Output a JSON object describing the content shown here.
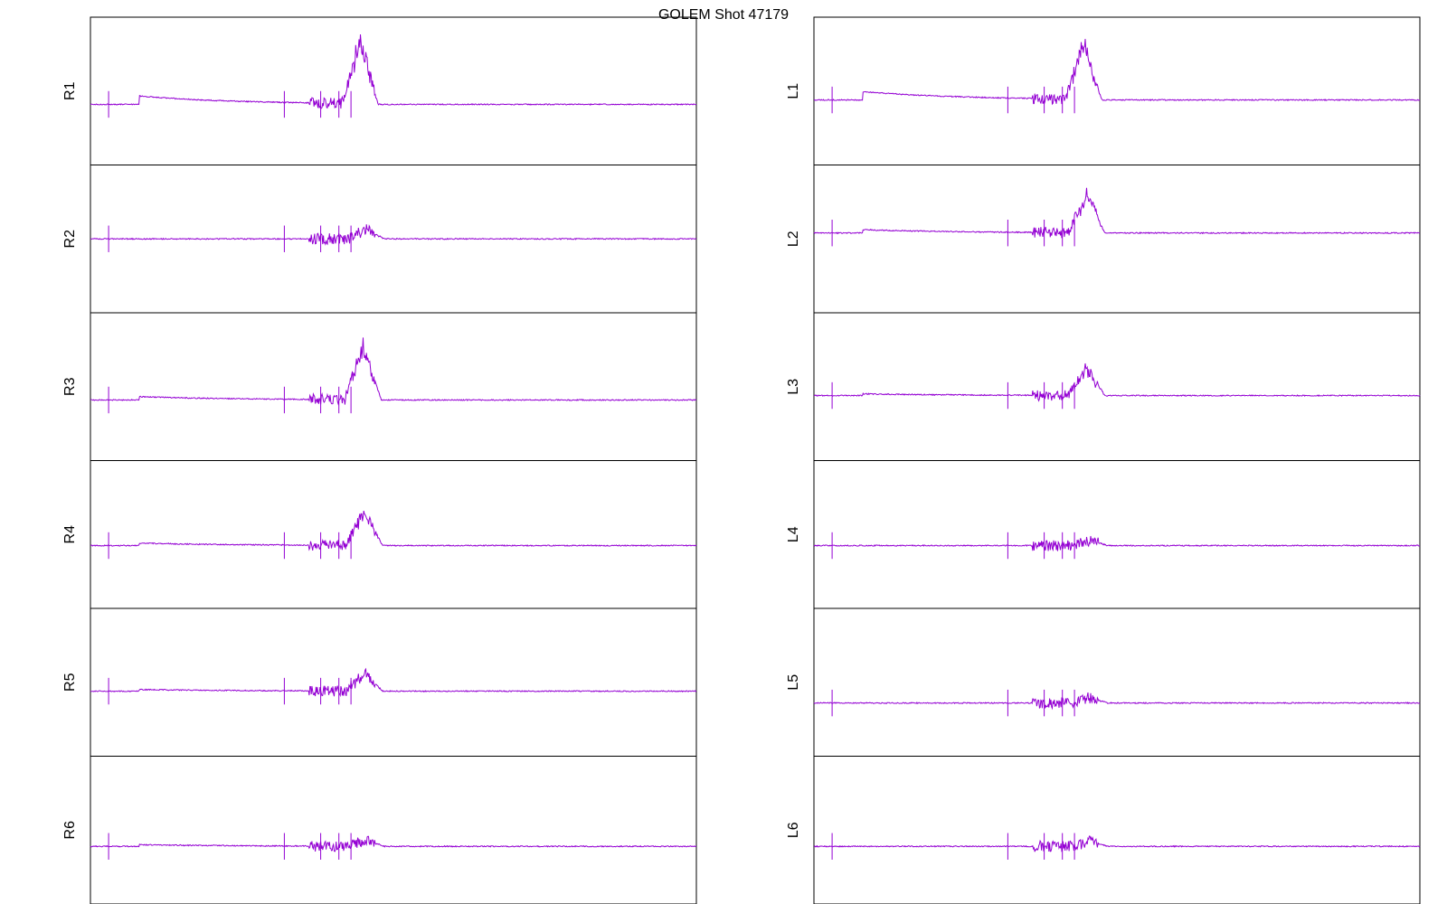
{
  "title": "GOLEM Shot 47179",
  "colors": {
    "trace": "#9400d3",
    "frame": "#000000",
    "background": "#ffffff"
  },
  "chart_data": {
    "type": "line",
    "title": "GOLEM Shot 47179",
    "layout": "6 rows x 2 columns, stacked panels without axes ticks",
    "x_ticks_visible": false,
    "y_ticks_visible": false,
    "grid": false,
    "legend": "none",
    "panels": [
      {
        "name": "R1",
        "column": "left",
        "row": 1,
        "ylabel": "R1",
        "baseline": -0.18,
        "drift": 0.1,
        "spike_peak": 1.0,
        "spike_center": 0.445,
        "noise": 0.1,
        "spikes": [
          0.03,
          0.32,
          0.38,
          0.41,
          0.43
        ]
      },
      {
        "name": "R2",
        "column": "left",
        "row": 2,
        "ylabel": "R2",
        "baseline": 0.0,
        "drift": 0.0,
        "spike_peak": 0.15,
        "spike_center": 0.455,
        "noise": 0.1,
        "spikes": [
          0.03,
          0.32,
          0.38,
          0.41,
          0.43
        ]
      },
      {
        "name": "R3",
        "column": "left",
        "row": 3,
        "ylabel": "R3",
        "baseline": -0.18,
        "drift": 0.04,
        "spike_peak": 0.85,
        "spike_center": 0.45,
        "noise": 0.1,
        "spikes": [
          0.03,
          0.32,
          0.38,
          0.41,
          0.43
        ]
      },
      {
        "name": "R4",
        "column": "left",
        "row": 4,
        "ylabel": "R4",
        "baseline": -0.15,
        "drift": 0.03,
        "spike_peak": 0.55,
        "spike_center": 0.452,
        "noise": 0.1,
        "spikes": [
          0.03,
          0.32,
          0.38,
          0.41,
          0.43
        ]
      },
      {
        "name": "R5",
        "column": "left",
        "row": 5,
        "ylabel": "R5",
        "baseline": -0.12,
        "drift": 0.02,
        "spike_peak": 0.3,
        "spike_center": 0.452,
        "noise": 0.1,
        "spikes": [
          0.03,
          0.32,
          0.38,
          0.41,
          0.43
        ]
      },
      {
        "name": "R6",
        "column": "left",
        "row": 6,
        "ylabel": "R6",
        "baseline": -0.22,
        "drift": 0.02,
        "spike_peak": 0.1,
        "spike_center": 0.455,
        "noise": 0.1,
        "spikes": [
          0.03,
          0.32,
          0.38,
          0.41,
          0.43
        ]
      },
      {
        "name": "L1",
        "column": "right",
        "row": 1,
        "ylabel": "L1",
        "baseline": -0.12,
        "drift": 0.1,
        "spike_peak": 0.9,
        "spike_center": 0.445,
        "noise": 0.1,
        "spikes": [
          0.03,
          0.32,
          0.38,
          0.41,
          0.43
        ]
      },
      {
        "name": "L2",
        "column": "right",
        "row": 2,
        "ylabel": "L2",
        "baseline": 0.08,
        "drift": 0.04,
        "spike_peak": 0.6,
        "spike_center": 0.45,
        "noise": 0.1,
        "spikes": [
          0.03,
          0.32,
          0.38,
          0.41,
          0.43
        ]
      },
      {
        "name": "L3",
        "column": "right",
        "row": 3,
        "ylabel": "L3",
        "baseline": -0.12,
        "drift": 0.02,
        "spike_peak": 0.45,
        "spike_center": 0.45,
        "noise": 0.1,
        "spikes": [
          0.03,
          0.32,
          0.38,
          0.41,
          0.43
        ]
      },
      {
        "name": "L4",
        "column": "right",
        "row": 4,
        "ylabel": "L4",
        "baseline": -0.15,
        "drift": 0.0,
        "spike_peak": 0.08,
        "spike_center": 0.455,
        "noise": 0.1,
        "spikes": [
          0.03,
          0.32,
          0.38,
          0.41,
          0.43
        ]
      },
      {
        "name": "L5",
        "column": "right",
        "row": 5,
        "ylabel": "L5",
        "baseline": -0.28,
        "drift": 0.0,
        "spike_peak": 0.08,
        "spike_center": 0.455,
        "noise": 0.1,
        "spikes": [
          0.03,
          0.32,
          0.38,
          0.41,
          0.43
        ]
      },
      {
        "name": "L6",
        "column": "right",
        "row": 6,
        "ylabel": "L6",
        "baseline": -0.22,
        "drift": 0.0,
        "spike_peak": 0.08,
        "spike_center": 0.455,
        "noise": 0.1,
        "spikes": [
          0.03,
          0.32,
          0.38,
          0.41,
          0.43
        ]
      }
    ],
    "ylim": [
      -1,
      1
    ],
    "xlim": [
      0,
      1
    ]
  }
}
